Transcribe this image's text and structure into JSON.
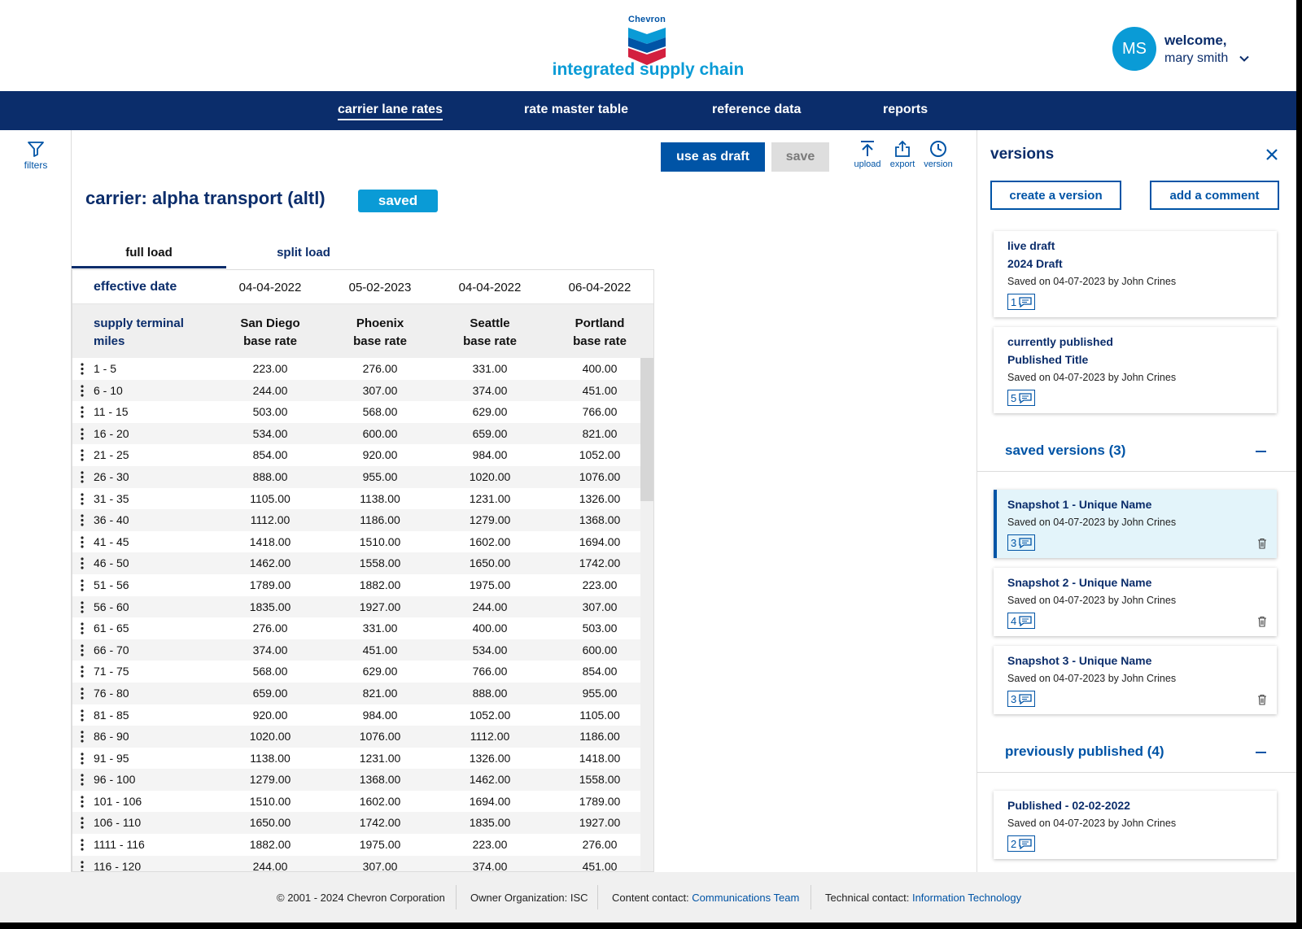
{
  "header": {
    "logo_text": "Chevron",
    "app_title": "integrated supply chain",
    "user": {
      "initials": "MS",
      "welcome": "welcome,",
      "name": "mary smith"
    }
  },
  "nav": {
    "items": [
      {
        "label": "carrier lane rates"
      },
      {
        "label": "rate master table"
      },
      {
        "label": "reference data"
      },
      {
        "label": "reports"
      }
    ]
  },
  "filters": {
    "label": "filters"
  },
  "toolbar": {
    "use_as_draft": "use as draft",
    "save": "save",
    "upload": "upload",
    "export": "export",
    "version": "version"
  },
  "carrier": {
    "title": "carrier: alpha transport (altl)",
    "status": "saved"
  },
  "tabs": [
    {
      "label": "full load"
    },
    {
      "label": "split load"
    }
  ],
  "grid": {
    "effective_label": "effective date",
    "effective_dates": [
      "04-04-2022",
      "05-02-2023",
      "04-04-2022",
      "06-04-2022"
    ],
    "first_header": [
      "supply terminal",
      "miles"
    ],
    "columns": [
      [
        "San Diego",
        "base rate"
      ],
      [
        "Phoenix",
        "base rate"
      ],
      [
        "Seattle",
        "base rate"
      ],
      [
        "Portland",
        "base rate"
      ]
    ],
    "rows": [
      [
        "1 - 5",
        "223.00",
        "276.00",
        "331.00",
        "400.00"
      ],
      [
        "6 - 10",
        "244.00",
        "307.00",
        "374.00",
        "451.00"
      ],
      [
        "11 - 15",
        "503.00",
        "568.00",
        "629.00",
        "766.00"
      ],
      [
        "16 - 20",
        "534.00",
        "600.00",
        "659.00",
        "821.00"
      ],
      [
        "21 - 25",
        "854.00",
        "920.00",
        "984.00",
        "1052.00"
      ],
      [
        "26 - 30",
        "888.00",
        "955.00",
        "1020.00",
        "1076.00"
      ],
      [
        "31 - 35",
        "1105.00",
        "1138.00",
        "1231.00",
        "1326.00"
      ],
      [
        "36 - 40",
        "1112.00",
        "1186.00",
        "1279.00",
        "1368.00"
      ],
      [
        "41 - 45",
        "1418.00",
        "1510.00",
        "1602.00",
        "1694.00"
      ],
      [
        "46 - 50",
        "1462.00",
        "1558.00",
        "1650.00",
        "1742.00"
      ],
      [
        "51 - 56",
        "1789.00",
        "1882.00",
        "1975.00",
        "223.00"
      ],
      [
        "56 - 60",
        "1835.00",
        "1927.00",
        "244.00",
        "307.00"
      ],
      [
        "61 - 65",
        "276.00",
        "331.00",
        "400.00",
        "503.00"
      ],
      [
        "66 - 70",
        "374.00",
        "451.00",
        "534.00",
        "600.00"
      ],
      [
        "71 - 75",
        "568.00",
        "629.00",
        "766.00",
        "854.00"
      ],
      [
        "76 - 80",
        "659.00",
        "821.00",
        "888.00",
        "955.00"
      ],
      [
        "81 - 85",
        "920.00",
        "984.00",
        "1052.00",
        "1105.00"
      ],
      [
        "86 - 90",
        "1020.00",
        "1076.00",
        "1112.00",
        "1186.00"
      ],
      [
        "91 - 95",
        "1138.00",
        "1231.00",
        "1326.00",
        "1418.00"
      ],
      [
        "96 - 100",
        "1279.00",
        "1368.00",
        "1462.00",
        "1558.00"
      ],
      [
        "101 - 106",
        "1510.00",
        "1602.00",
        "1694.00",
        "1789.00"
      ],
      [
        "106 - 110",
        "1650.00",
        "1742.00",
        "1835.00",
        "1927.00"
      ],
      [
        "1111 - 116",
        "1882.00",
        "1975.00",
        "223.00",
        "276.00"
      ],
      [
        "116 - 120",
        "244.00",
        "307.00",
        "374.00",
        "451.00"
      ]
    ]
  },
  "versions": {
    "title": "versions",
    "create_button": "create a version",
    "comment_button": "add a comment",
    "live": {
      "kind": "live draft",
      "name": "2024 Draft",
      "saved": "Saved on 04-07-2023 by John Crines",
      "comments": "1"
    },
    "published": {
      "kind": "currently published",
      "name": "Published Title",
      "saved": "Saved on 04-07-2023 by John Crines",
      "comments": "5"
    },
    "saved_title": "saved versions (3)",
    "saved_items": [
      {
        "name": "Snapshot 1 - Unique Name",
        "saved": "Saved on 04-07-2023 by John Crines",
        "comments": "3"
      },
      {
        "name": "Snapshot 2 - Unique Name",
        "saved": "Saved on 04-07-2023 by John Crines",
        "comments": "4"
      },
      {
        "name": "Snapshot 3 - Unique Name",
        "saved": "Saved on 04-07-2023 by John Crines",
        "comments": "3"
      }
    ],
    "previous_title": "previously published (4)",
    "previous_items": [
      {
        "name": "Published - 02-02-2022",
        "saved": "Saved on 04-07-2023 by John Crines",
        "comments": "2"
      }
    ]
  },
  "footer": {
    "copyright": "© 2001 - 2024 Chevron Corporation",
    "owner": "Owner Organization: ISC",
    "content_label": "Content contact:",
    "content_link": "Communications Team",
    "tech_label": "Technical contact:",
    "tech_link": "Information Technology"
  },
  "colors": {
    "navy": "#0b2d6b",
    "blue": "#0054a6",
    "cyan": "#0a9bd6",
    "selected_card": "#e3f4fa",
    "logo_red": "#d3203f"
  },
  "icons": [
    "chevron-logo",
    "chevron-down-icon",
    "filter-icon",
    "upload-icon",
    "export-icon",
    "clock-icon",
    "close-icon",
    "comment-icon",
    "trash-icon",
    "minus-icon",
    "kebab-icon"
  ]
}
